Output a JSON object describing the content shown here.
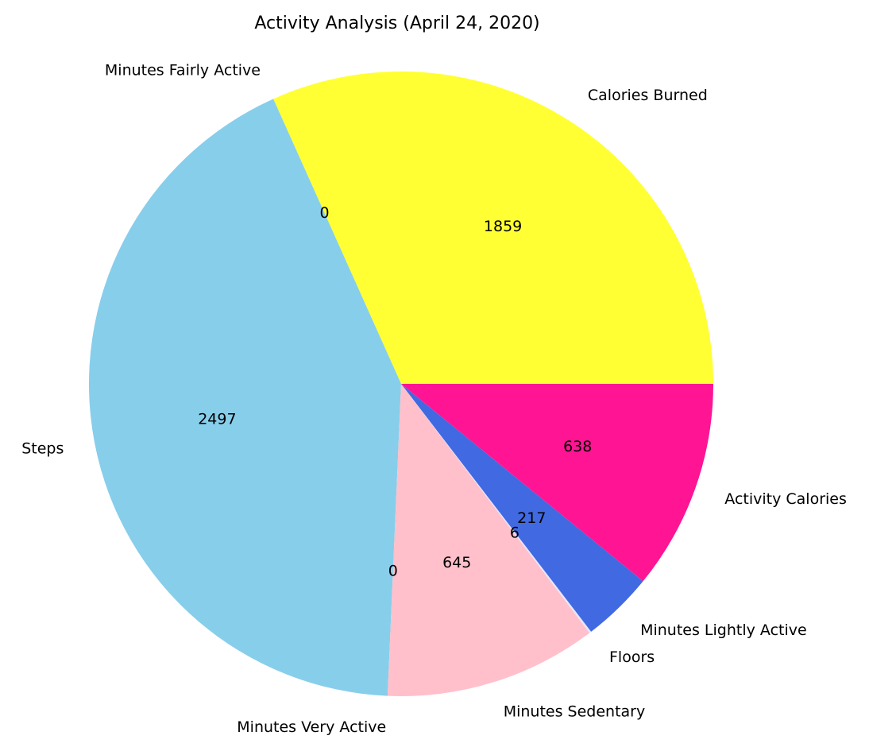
{
  "chart_data": {
    "type": "pie",
    "title": "Activity Analysis (April 24, 2020)",
    "start_angle_deg": 0,
    "direction": "counterclockwise",
    "slices": [
      {
        "label": "Calories Burned",
        "value": 1859,
        "display": "1859",
        "color": "#ffff33"
      },
      {
        "label": "Minutes Fairly Active",
        "value": 0,
        "display": "0",
        "color": "#ffd700"
      },
      {
        "label": "Steps",
        "value": 2497,
        "display": "2497",
        "color": "#87ceeb"
      },
      {
        "label": "Minutes Very Active",
        "value": 0,
        "display": "0",
        "color": "#ffa500"
      },
      {
        "label": "Minutes Sedentary",
        "value": 645,
        "display": "645",
        "color": "#ffc0cb"
      },
      {
        "label": "Floors",
        "value": 6,
        "display": "6",
        "color": "#e6e6fa"
      },
      {
        "label": "Minutes Lightly Active",
        "value": 217,
        "display": "217",
        "color": "#4169e1"
      },
      {
        "label": "Activity Calories",
        "value": 638,
        "display": "638",
        "color": "#ff1493"
      }
    ]
  }
}
